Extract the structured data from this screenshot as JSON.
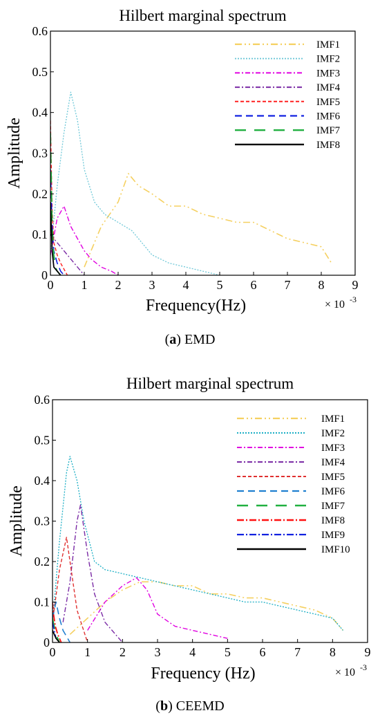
{
  "figure": {
    "captions": [
      {
        "letter": "a",
        "rest": ") EMD"
      },
      {
        "letter": "b",
        "rest": ") CEEMD"
      }
    ]
  },
  "chart_data": [
    {
      "type": "line",
      "title": "Hilbert  marginal spectrum",
      "xlabel": "Frequency(Hz)",
      "ylabel": "Amplitude",
      "x_multiplier": "× 10",
      "x_multiplier_exp": "-3",
      "xlim": [
        0,
        9
      ],
      "ylim": [
        0,
        0.6
      ],
      "x_ticks": [
        "0",
        "1",
        "2",
        "3",
        "4",
        "5",
        "6",
        "7",
        "8",
        "9"
      ],
      "y_ticks": [
        "0",
        "0.1",
        "0.2",
        "0.3",
        "0.4",
        "0.5",
        "0.6"
      ],
      "legend_position": "top-right",
      "series": [
        {
          "name": "IMF1",
          "color": "#f5d060",
          "dash": "10,4,2,4,2,4",
          "width": 1.6,
          "x": [
            1.0,
            1.5,
            2.0,
            2.3,
            2.6,
            3.0,
            3.5,
            4.0,
            4.5,
            5.0,
            5.5,
            6.0,
            6.5,
            7.0,
            7.5,
            8.0,
            8.3
          ],
          "y": [
            0.02,
            0.12,
            0.18,
            0.25,
            0.22,
            0.2,
            0.17,
            0.17,
            0.15,
            0.14,
            0.13,
            0.13,
            0.11,
            0.09,
            0.08,
            0.07,
            0.03
          ]
        },
        {
          "name": "IMF2",
          "color": "#6fc8d8",
          "dash": "2,2",
          "width": 1.3,
          "x": [
            0.0,
            0.2,
            0.4,
            0.6,
            0.8,
            1.0,
            1.3,
            1.6,
            2.0,
            2.4,
            2.7,
            3.0,
            3.5,
            4.0,
            4.5,
            5.0
          ],
          "y": [
            0.05,
            0.22,
            0.35,
            0.45,
            0.38,
            0.26,
            0.18,
            0.15,
            0.13,
            0.11,
            0.08,
            0.05,
            0.03,
            0.02,
            0.01,
            0.0
          ]
        },
        {
          "name": "IMF3",
          "color": "#e000e0",
          "dash": "7,3,2,3",
          "width": 1.4,
          "x": [
            0.0,
            0.2,
            0.4,
            0.6,
            0.8,
            1.0,
            1.2,
            1.5,
            1.8,
            2.0
          ],
          "y": [
            0.05,
            0.14,
            0.17,
            0.12,
            0.09,
            0.06,
            0.04,
            0.02,
            0.01,
            0.0
          ]
        },
        {
          "name": "IMF4",
          "color": "#7a2aa5",
          "dash": "7,3,2,3",
          "width": 1.4,
          "x": [
            0.0,
            0.1,
            0.2,
            0.3,
            0.5,
            0.7,
            1.0
          ],
          "y": [
            0.1,
            0.09,
            0.08,
            0.07,
            0.05,
            0.03,
            0.0
          ]
        },
        {
          "name": "IMF5",
          "color": "#ff2020",
          "dash": "5,3",
          "width": 1.4,
          "x": [
            0.0,
            0.05,
            0.1,
            0.2,
            0.3,
            0.5
          ],
          "y": [
            0.38,
            0.16,
            0.08,
            0.05,
            0.03,
            0.0
          ]
        },
        {
          "name": "IMF6",
          "color": "#1020e0",
          "dash": "10,6",
          "width": 1.6,
          "x": [
            0.0,
            0.05,
            0.1,
            0.2,
            0.3,
            0.4
          ],
          "y": [
            0.26,
            0.12,
            0.06,
            0.03,
            0.01,
            0.0
          ]
        },
        {
          "name": "IMF7",
          "color": "#20b040",
          "dash": "16,12",
          "width": 1.8,
          "x": [
            0.0,
            0.05,
            0.1,
            0.15,
            0.2,
            0.3
          ],
          "y": [
            0.35,
            0.12,
            0.05,
            0.02,
            0.01,
            0.0
          ]
        },
        {
          "name": "IMF8",
          "color": "#000000",
          "dash": "",
          "width": 1.8,
          "x": [
            0.0,
            0.05,
            0.1,
            0.2,
            0.3
          ],
          "y": [
            0.18,
            0.06,
            0.02,
            0.01,
            0.0
          ]
        }
      ]
    },
    {
      "type": "line",
      "title": "Hilbert marginal spectrum",
      "xlabel": "Frequency (Hz)",
      "ylabel": "Amplitude",
      "x_multiplier": "× 10",
      "x_multiplier_exp": "-3",
      "xlim": [
        0,
        9
      ],
      "ylim": [
        0,
        0.6
      ],
      "x_ticks": [
        "0",
        "1",
        "2",
        "3",
        "4",
        "5",
        "6",
        "7",
        "8",
        "9"
      ],
      "y_ticks": [
        "0",
        "0.1",
        "0.2",
        "0.3",
        "0.4",
        "0.5",
        "0.6"
      ],
      "legend_position": "top-right",
      "series": [
        {
          "name": "IMF1",
          "color": "#f5d060",
          "dash": "10,4,2,4,2,4",
          "width": 1.6,
          "x": [
            0.5,
            1.0,
            1.5,
            2.0,
            2.5,
            3.0,
            3.5,
            4.0,
            4.5,
            5.0,
            5.5,
            6.0,
            6.5,
            7.0,
            7.5,
            8.0,
            8.3
          ],
          "y": [
            0.02,
            0.06,
            0.1,
            0.13,
            0.15,
            0.15,
            0.14,
            0.14,
            0.12,
            0.12,
            0.11,
            0.11,
            0.1,
            0.09,
            0.08,
            0.06,
            0.03
          ]
        },
        {
          "name": "IMF2",
          "color": "#1aaec4",
          "dash": "2,2",
          "width": 1.3,
          "x": [
            0.0,
            0.2,
            0.4,
            0.5,
            0.7,
            0.9,
            1.2,
            1.5,
            2.0,
            2.5,
            3.0,
            3.5,
            4.0,
            4.5,
            5.0,
            5.5,
            6.0,
            6.5,
            7.0,
            7.5,
            8.0,
            8.3
          ],
          "y": [
            0.05,
            0.25,
            0.42,
            0.46,
            0.4,
            0.3,
            0.2,
            0.18,
            0.17,
            0.16,
            0.15,
            0.14,
            0.13,
            0.12,
            0.11,
            0.1,
            0.1,
            0.09,
            0.08,
            0.07,
            0.06,
            0.03
          ]
        },
        {
          "name": "IMF3",
          "color": "#e000e0",
          "dash": "7,3,2,3",
          "width": 1.4,
          "x": [
            1.0,
            1.5,
            2.0,
            2.4,
            2.7,
            3.0,
            3.5,
            4.0,
            4.5,
            5.0
          ],
          "y": [
            0.03,
            0.1,
            0.14,
            0.16,
            0.13,
            0.07,
            0.04,
            0.03,
            0.02,
            0.01
          ]
        },
        {
          "name": "IMF4",
          "color": "#7a2aa5",
          "dash": "7,3,2,3",
          "width": 1.4,
          "x": [
            0.3,
            0.5,
            0.7,
            0.8,
            1.0,
            1.2,
            1.5,
            2.0
          ],
          "y": [
            0.05,
            0.15,
            0.3,
            0.34,
            0.22,
            0.12,
            0.05,
            0.0
          ]
        },
        {
          "name": "IMF5",
          "color": "#e03030",
          "dash": "5,3",
          "width": 1.4,
          "x": [
            0.0,
            0.2,
            0.4,
            0.5,
            0.7,
            1.0
          ],
          "y": [
            0.05,
            0.18,
            0.26,
            0.2,
            0.08,
            0.0
          ]
        },
        {
          "name": "IMF6",
          "color": "#1f7fd0",
          "dash": "10,6",
          "width": 1.6,
          "x": [
            0.0,
            0.1,
            0.2,
            0.3,
            0.5
          ],
          "y": [
            0.06,
            0.1,
            0.06,
            0.03,
            0.0
          ]
        },
        {
          "name": "IMF7",
          "color": "#20b040",
          "dash": "16,12",
          "width": 1.8,
          "x": [
            0.0,
            0.05,
            0.1,
            0.2
          ],
          "y": [
            0.06,
            0.04,
            0.02,
            0.0
          ]
        },
        {
          "name": "IMF8",
          "color": "#ff1010",
          "dash": "10,3,2,3",
          "width": 1.8,
          "x": [
            0.0,
            0.03,
            0.08,
            0.15,
            0.25
          ],
          "y": [
            0.1,
            0.07,
            0.04,
            0.02,
            0.0
          ]
        },
        {
          "name": "IMF9",
          "color": "#1020e0",
          "dash": "10,3,2,3",
          "width": 1.6,
          "x": [
            0.0,
            0.05,
            0.1,
            0.2
          ],
          "y": [
            0.05,
            0.03,
            0.01,
            0.0
          ]
        },
        {
          "name": "IMF10",
          "color": "#000000",
          "dash": "",
          "width": 1.8,
          "x": [
            0.0,
            0.05,
            0.1,
            0.2
          ],
          "y": [
            0.03,
            0.02,
            0.01,
            0.0
          ]
        }
      ]
    }
  ]
}
